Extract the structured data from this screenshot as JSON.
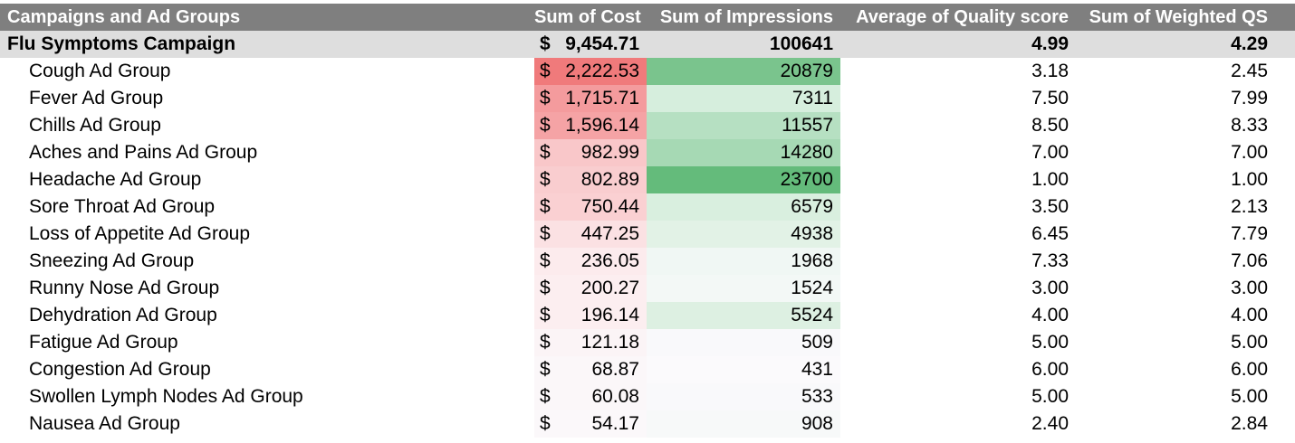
{
  "headers": {
    "name": "Campaigns and Ad Groups",
    "cost": "Sum of Cost",
    "impressions": "Sum of Impressions",
    "quality": "Average of Quality score",
    "weighted": "Sum of Weighted QS"
  },
  "campaign": {
    "name": "Flu Symptoms Campaign",
    "currency": "$",
    "cost": "9,454.71",
    "impressions": "100641",
    "quality": "4.99",
    "weighted": "4.29"
  },
  "groups": [
    {
      "name": "Cough Ad Group",
      "currency": "$",
      "cost": "2,222.53",
      "impressions": "20879",
      "quality": "3.18",
      "weighted": "2.45",
      "cost_bg": "#f07a7b",
      "imp_bg": "#7ac48d"
    },
    {
      "name": "Fever Ad Group",
      "currency": "$",
      "cost": "1,715.71",
      "impressions": "7311",
      "quality": "7.50",
      "weighted": "7.99",
      "cost_bg": "#f49b9d",
      "imp_bg": "#d6eedd"
    },
    {
      "name": "Chills Ad Group",
      "currency": "$",
      "cost": "1,596.14",
      "impressions": "11557",
      "quality": "8.50",
      "weighted": "8.33",
      "cost_bg": "#f5a3a5",
      "imp_bg": "#b6e0c2"
    },
    {
      "name": "Aches and Pains Ad Group",
      "currency": "$",
      "cost": "982.99",
      "impressions": "14280",
      "quality": "7.00",
      "weighted": "7.00",
      "cost_bg": "#f9c7c9",
      "imp_bg": "#a6d9b4"
    },
    {
      "name": "Headache Ad Group",
      "currency": "$",
      "cost": "802.89",
      "impressions": "23700",
      "quality": "1.00",
      "weighted": "1.00",
      "cost_bg": "#f9cdcf",
      "imp_bg": "#64bb7b"
    },
    {
      "name": "Sore Throat Ad Group",
      "currency": "$",
      "cost": "750.44",
      "impressions": "6579",
      "quality": "3.50",
      "weighted": "2.13",
      "cost_bg": "#fad0d2",
      "imp_bg": "#d9efdf"
    },
    {
      "name": "Loss of Appetite Ad Group",
      "currency": "$",
      "cost": "447.25",
      "impressions": "4938",
      "quality": "6.45",
      "weighted": "7.79",
      "cost_bg": "#fbe1e3",
      "imp_bg": "#e2f2e6"
    },
    {
      "name": "Sneezing Ad Group",
      "currency": "$",
      "cost": "236.05",
      "impressions": "1968",
      "quality": "7.33",
      "weighted": "7.06",
      "cost_bg": "#fcebed",
      "imp_bg": "#f0f7f4"
    },
    {
      "name": "Runny Nose Ad Group",
      "currency": "$",
      "cost": "200.27",
      "impressions": "1524",
      "quality": "3.00",
      "weighted": "3.00",
      "cost_bg": "#fceef0",
      "imp_bg": "#f3f8f6"
    },
    {
      "name": "Dehydration Ad Group",
      "currency": "$",
      "cost": "196.14",
      "impressions": "5524",
      "quality": "4.00",
      "weighted": "4.00",
      "cost_bg": "#fceef0",
      "imp_bg": "#ddf0e2"
    },
    {
      "name": "Fatigue Ad Group",
      "currency": "$",
      "cost": "121.18",
      "impressions": "509",
      "quality": "5.00",
      "weighted": "5.00",
      "cost_bg": "#fbf4f6",
      "imp_bg": "#f9f9fb"
    },
    {
      "name": "Congestion Ad Group",
      "currency": "$",
      "cost": "68.87",
      "impressions": "431",
      "quality": "6.00",
      "weighted": "6.00",
      "cost_bg": "#fbf7f9",
      "imp_bg": "#fbfafc"
    },
    {
      "name": "Swollen Lymph Nodes Ad Group",
      "currency": "$",
      "cost": "60.08",
      "impressions": "533",
      "quality": "5.00",
      "weighted": "5.00",
      "cost_bg": "#fbf7f9",
      "imp_bg": "#f9f9fb"
    },
    {
      "name": "Nausea Ad Group",
      "currency": "$",
      "cost": "54.17",
      "impressions": "908",
      "quality": "2.40",
      "weighted": "2.84",
      "cost_bg": "#fbf8fa",
      "imp_bg": "#f7f9f9"
    }
  ]
}
